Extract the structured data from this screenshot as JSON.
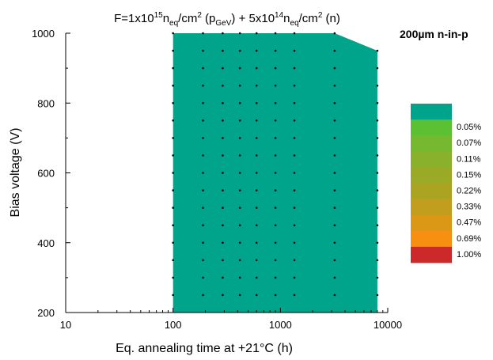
{
  "chart_data": {
    "type": "heatmap",
    "title_parts": {
      "f1": "F=1x10",
      "e1": "15",
      "n1": "n",
      "s1": "eq",
      "u1": "/cm",
      "sq1": "2",
      "p_open": " (p",
      "gev": "GeV",
      "p_close": ") + 5x10",
      "e2": "14",
      "n2": "n",
      "s2": "eq",
      "u2": "/cm",
      "sq2": "2",
      "tail": " (n)"
    },
    "label": "200µm n-in-p",
    "xlabel": "Eq. annealing time at +21°C (h)",
    "ylabel": "Bias voltage (V)",
    "x_scale": "log",
    "xlim": [
      10,
      10000
    ],
    "ylim": [
      200,
      1000
    ],
    "x_ticks": [
      {
        "value": 10,
        "label": "10"
      },
      {
        "value": 100,
        "label": "100"
      },
      {
        "value": 1000,
        "label": "1000"
      },
      {
        "value": 10000,
        "label": "10000"
      }
    ],
    "y_ticks": [
      {
        "value": 200,
        "label": "200"
      },
      {
        "value": 400,
        "label": "400"
      },
      {
        "value": 600,
        "label": "600"
      },
      {
        "value": 800,
        "label": "800"
      },
      {
        "value": 1000,
        "label": "1000"
      }
    ],
    "region_color": "#00A48A",
    "region_polygon": [
      [
        100,
        200
      ],
      [
        100,
        1000
      ],
      [
        3200,
        1000
      ],
      [
        8000,
        950
      ],
      [
        8000,
        200
      ]
    ],
    "grid_x": [
      100,
      190,
      290,
      420,
      600,
      900,
      1350,
      3200,
      8000
    ],
    "grid_y": [
      250,
      300,
      350,
      400,
      450,
      500,
      550,
      600,
      650,
      700,
      750,
      800,
      850,
      900,
      950,
      1000
    ],
    "legend": {
      "placement": "right",
      "entries": [
        {
          "label": "",
          "color": "#00A48A"
        },
        {
          "label": "0.05%",
          "color": "#5CC033"
        },
        {
          "label": "0.07%",
          "color": "#76B82F"
        },
        {
          "label": "0.11%",
          "color": "#8AB12B"
        },
        {
          "label": "0.15%",
          "color": "#9AAA27"
        },
        {
          "label": "0.22%",
          "color": "#ABA423"
        },
        {
          "label": "0.33%",
          "color": "#C19E1D"
        },
        {
          "label": "0.47%",
          "color": "#DB9716"
        },
        {
          "label": "0.69%",
          "color": "#F78F10"
        },
        {
          "label": "1.00%",
          "color": "#CC2A2A"
        }
      ]
    }
  }
}
